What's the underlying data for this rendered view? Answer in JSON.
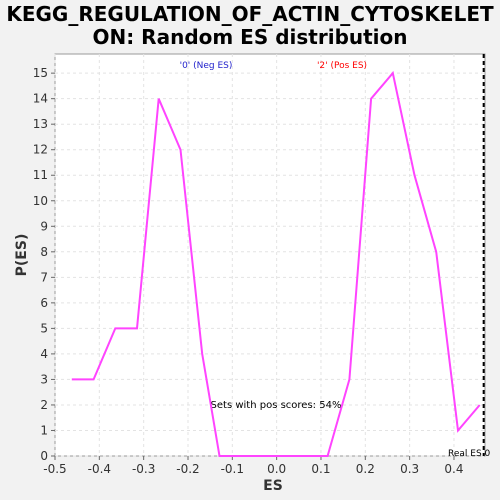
{
  "chart_data": {
    "type": "line",
    "title": "KEGG_REGULATION_OF_ACTIN_CYTOSKELETON: Random ES distribution",
    "title_lines": [
      "KEGG_REGULATION_OF_ACTIN_CYTOSKELET",
      "ON: Random ES distribution"
    ],
    "xlabel": "ES",
    "ylabel": "P(ES)",
    "xlim": [
      -0.5,
      0.47
    ],
    "ylim": [
      0,
      15.75
    ],
    "x_ticks": [
      -0.5,
      -0.4,
      -0.3,
      -0.2,
      -0.1,
      0.0,
      0.1,
      0.2,
      0.3,
      0.4
    ],
    "x_tick_labels": [
      "-0.5",
      "-0.4",
      "-0.3",
      "-0.2",
      "-0.1",
      "0.0",
      "0.1",
      "0.2",
      "0.3",
      "0.4"
    ],
    "y_ticks": [
      0,
      1,
      2,
      3,
      4,
      5,
      6,
      7,
      8,
      9,
      10,
      11,
      12,
      13,
      14,
      15
    ],
    "y_tick_labels": [
      "0",
      "1",
      "2",
      "3",
      "4",
      "5",
      "6",
      "7",
      "8",
      "9",
      "10",
      "11",
      "12",
      "13",
      "14",
      "15"
    ],
    "grid": true,
    "series": [
      {
        "color": "#ff44ff",
        "x": [
          -0.462,
          -0.413,
          -0.364,
          -0.315,
          -0.266,
          -0.217,
          -0.168,
          -0.129,
          0.115,
          0.164,
          0.213,
          0.262,
          0.311,
          0.36,
          0.409,
          0.458
        ],
        "y": [
          3,
          3,
          5,
          5,
          14,
          12,
          4,
          0,
          0,
          3,
          14,
          15,
          11,
          8,
          1,
          2
        ]
      }
    ],
    "real_es": 0.467,
    "real_es_label": "Real ES 0",
    "annotations": {
      "neg_label": "'0' (Neg ES)",
      "neg_color": "#2222cc",
      "pos_label": "'2' (Pos ES)",
      "pos_color": "#ff0000",
      "pos_scores_text": "Sets with pos scores: 54%"
    }
  }
}
